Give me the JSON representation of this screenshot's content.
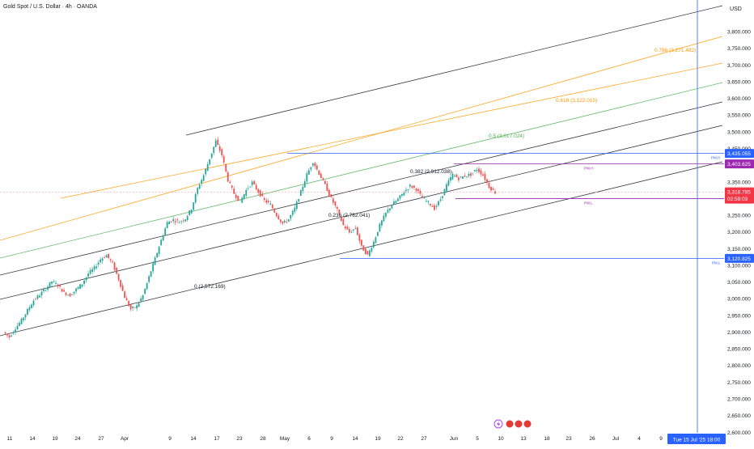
{
  "chart_data": {
    "type": "candlestick",
    "title": "Gold Spot / U.S. Dollar · 4h · OANDA",
    "currency": "USD",
    "ylim": [
      2591,
      3852
    ],
    "y_ticks": [
      3800,
      3750,
      3700,
      3650,
      3600,
      3550,
      3500,
      3450,
      3400,
      3350,
      3300,
      3250,
      3200,
      3150,
      3100,
      3050,
      3000,
      2950,
      2900,
      2850,
      2800,
      2750,
      2700,
      2650,
      2600
    ],
    "y_tick_labels": [
      "3,800.000",
      "3,750.000",
      "3,700.000",
      "3,650.000",
      "3,600.000",
      "3,550.000",
      "3,500.000",
      "3,450.000",
      "3,400.000",
      "3,350.000",
      "3,300.000",
      "3,250.000",
      "3,200.000",
      "3,150.000",
      "3,100.000",
      "3,050.000",
      "3,000.000",
      "2,950.000",
      "2,900.000",
      "2,850.000",
      "2,800.000",
      "2,750.000",
      "2,700.000",
      "2,650.000",
      "2,600.000"
    ],
    "x_ticks": [
      "11",
      "14",
      "19",
      "24",
      "27",
      "Apr",
      "9",
      "14",
      "17",
      "23",
      "28",
      "May",
      "6",
      "9",
      "14",
      "19",
      "22",
      "27",
      "Jun",
      "5",
      "10",
      "13",
      "18",
      "23",
      "26",
      "Jul",
      "4",
      "9"
    ],
    "crosshair_date": "Tue 15 Jul '25   18:00",
    "ohlc_path": [
      2900,
      2885,
      2912,
      2935,
      2965,
      2995,
      3012,
      3030,
      3052,
      3040,
      3018,
      3010,
      3028,
      3045,
      3075,
      3092,
      3118,
      3130,
      3105,
      3058,
      3005,
      2968,
      2978,
      3010,
      3065,
      3120,
      3175,
      3228,
      3236,
      3230,
      3240,
      3270,
      3330,
      3370,
      3420,
      3472,
      3430,
      3355,
      3315,
      3290,
      3325,
      3348,
      3320,
      3294,
      3282,
      3250,
      3225,
      3238,
      3270,
      3320,
      3372,
      3410,
      3375,
      3340,
      3300,
      3265,
      3220,
      3198,
      3212,
      3155,
      3130,
      3170,
      3220,
      3256,
      3282,
      3298,
      3320,
      3338,
      3328,
      3302,
      3288,
      3270,
      3298,
      3340,
      3372,
      3360,
      3368,
      3372,
      3388,
      3370,
      3335,
      3318
    ],
    "fib_levels": [
      {
        "label": "0 (2,572.169)",
        "color": "#131722"
      },
      {
        "label": "0.236 (2,782.041)",
        "color": "#131722"
      },
      {
        "label": "0.382 (2,912.038)",
        "color": "#131722"
      },
      {
        "label": "0.5 (3,017.024)",
        "color": "#4caf50"
      },
      {
        "label": "0.618 (3,122.010)",
        "color": "#ff9800"
      },
      {
        "label": "0.786 (3,271.482)",
        "color": "#ff9800"
      }
    ],
    "horizontal_levels": [
      {
        "label": "PM.H",
        "price_label": "3,435.055",
        "value": 3435.055,
        "color": "#2962ff"
      },
      {
        "label": "PW.H",
        "price_label": "3,403.625",
        "value": 3403.625,
        "color": "#9c27b0"
      },
      {
        "label": "PW.L",
        "price_label": "3,299.955",
        "value": 3299.955,
        "color": "#9c27b0"
      },
      {
        "label": "PM.L",
        "price_label": "3,120.825",
        "value": 3120.825,
        "color": "#2962ff"
      }
    ],
    "last_price": {
      "value": 3318.785,
      "label": "3,318.785",
      "countdown": "02:59:03",
      "color": "#f23645"
    },
    "colors": {
      "up": "#26a69a",
      "down": "#ef5350",
      "grid": "#e0e3eb",
      "axis_text": "#131722"
    }
  }
}
